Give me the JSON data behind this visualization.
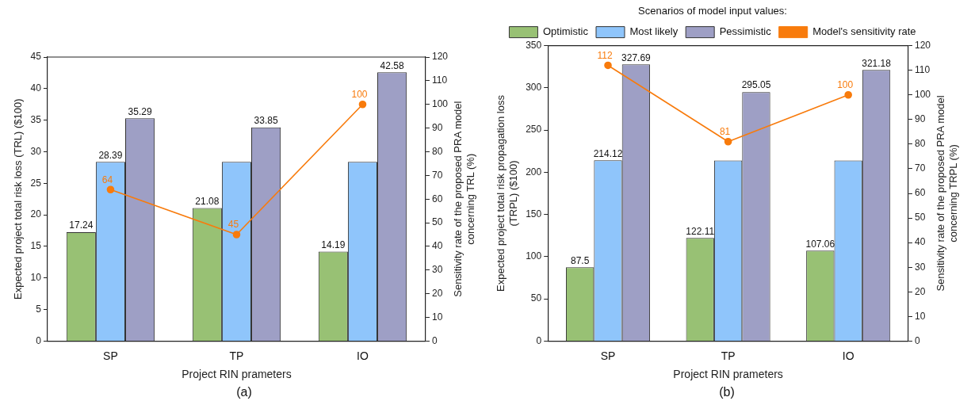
{
  "chart_data": [
    {
      "type": "bar",
      "categories": [
        "SP",
        "TP",
        "IO"
      ],
      "xlabel": "Project RIN prameters",
      "ylabel": "Expected project total risk loss (TRL) ($100)",
      "y2label": "Sensitivity rate of the proposed PRA model concerning TRL (%)",
      "ylim": [
        0,
        45
      ],
      "yticks": [
        0,
        5,
        10,
        15,
        20,
        25,
        30,
        35,
        40,
        45
      ],
      "y2lim": [
        0,
        120
      ],
      "y2ticks": [
        0,
        10,
        20,
        30,
        40,
        50,
        60,
        70,
        80,
        90,
        100,
        110,
        120
      ],
      "legend": false,
      "grid": false,
      "marker": "circle",
      "annotations": [
        "(a)"
      ],
      "series": [
        {
          "color": "#98c174",
          "values": [
            17.24,
            21.08,
            14.19
          ],
          "value_labels": [
            "17.24",
            "21.08",
            "14.19"
          ]
        },
        {
          "color": "#8fc5fb",
          "values": [
            28.39,
            28.4,
            28.4
          ],
          "value_labels": [
            "28.39",
            null,
            null
          ]
        },
        {
          "color": "#9e9fc5",
          "values": [
            35.29,
            33.85,
            42.58
          ],
          "value_labels": [
            "35.29",
            "33.85",
            "42.58"
          ]
        },
        {
          "type": "line",
          "axis": "y2",
          "color": "#f87b0c",
          "values": [
            64,
            45,
            100
          ],
          "value_labels": [
            "64",
            "45",
            "100"
          ]
        }
      ]
    },
    {
      "type": "bar",
      "categories": [
        "SP",
        "TP",
        "IO"
      ],
      "xlabel": "Project RIN prameters",
      "ylabel": "Expected project total risk propagation loss (TRPL) ($100)",
      "y2label": "Sensitivity rate of the proposed PRA model concerning TRPL (%)",
      "ylim": [
        0,
        350
      ],
      "yticks": [
        0,
        50,
        100,
        150,
        200,
        250,
        300,
        350
      ],
      "y2lim": [
        0,
        120
      ],
      "y2ticks": [
        0,
        10,
        20,
        30,
        40,
        50,
        60,
        70,
        80,
        90,
        100,
        110,
        120
      ],
      "legend": "top",
      "legend_title": "Scenarios of model input values:",
      "grid": false,
      "marker": "circle",
      "annotations": [
        "(b)"
      ],
      "series": [
        {
          "name": "Optimistic",
          "color": "#98c174",
          "values": [
            87.5,
            122.11,
            107.06
          ],
          "value_labels": [
            "87.5",
            "122.11",
            "107.06"
          ]
        },
        {
          "name": "Most likely",
          "color": "#8fc5fb",
          "values": [
            214.12,
            214,
            214
          ],
          "value_labels": [
            "214.12",
            null,
            null
          ]
        },
        {
          "name": "Pessimistic",
          "color": "#9e9fc5",
          "values": [
            327.69,
            295.05,
            321.18
          ],
          "value_labels": [
            "327.69",
            "295.05",
            "321.18"
          ]
        },
        {
          "type": "line",
          "axis": "y2",
          "name": "Model's sensitivity rate",
          "color": "#f87b0c",
          "values": [
            112,
            81,
            100
          ],
          "value_labels": [
            "112",
            "81",
            "100"
          ]
        }
      ]
    }
  ]
}
